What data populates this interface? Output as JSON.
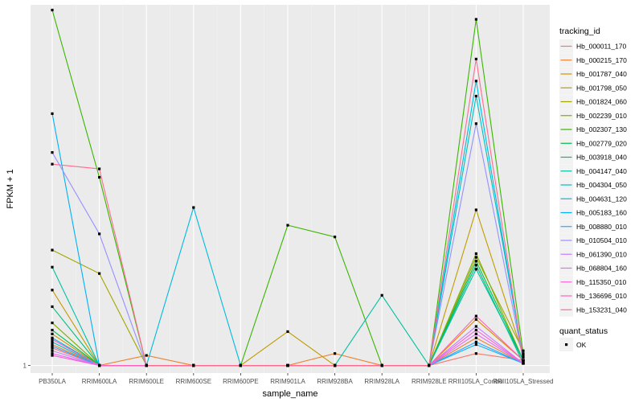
{
  "chart_data": {
    "type": "line",
    "xlabel": "sample_name",
    "ylabel": "FPKM + 1",
    "categories": [
      "PB350LA",
      "RRIM600LA",
      "RRIM600LE",
      "RRIM600SE",
      "RRIM600PE",
      "RRIM901LA",
      "RRIM928BA",
      "RRIM928LA",
      "RRIM928LE",
      "RRII105LA_Control",
      "RRII105LA_Stressed"
    ],
    "y_tick_labels": [
      "1"
    ],
    "ylim": [
      0.93,
      31
    ],
    "grid": true,
    "legend_position": "right",
    "legend_color_title": "tracking_id",
    "legend_shape_title": "quant_status",
    "legend_shape_label": "OK",
    "series": [
      {
        "name": "Hb_000011_170",
        "color": "#F8766D",
        "values": [
          1.18,
          1,
          1,
          1,
          1,
          1,
          1,
          1,
          1,
          1.12,
          1.05
        ]
      },
      {
        "name": "Hb_000215_170",
        "color": "#EA8331",
        "values": [
          1.22,
          1,
          1.1,
          1,
          1,
          1,
          1.12,
          1,
          1,
          1.3,
          1.02
        ]
      },
      {
        "name": "Hb_001787_040",
        "color": "#D89000",
        "values": [
          1.35,
          1,
          1,
          1,
          1,
          1,
          1,
          1,
          1,
          1.55,
          1.05
        ]
      },
      {
        "name": "Hb_001798_050",
        "color": "#C09B00",
        "values": [
          2.05,
          1,
          1,
          1,
          1,
          1.38,
          1,
          1,
          1,
          4.4,
          1.1
        ]
      },
      {
        "name": "Hb_001824_060",
        "color": "#A3A500",
        "values": [
          3.0,
          2.4,
          1,
          1,
          1,
          1,
          1,
          1,
          1,
          2.8,
          1.15
        ]
      },
      {
        "name": "Hb_002239_010",
        "color": "#7CAE00",
        "values": [
          1.5,
          1,
          1,
          1,
          1,
          1,
          1,
          1,
          1,
          2.9,
          1.05
        ]
      },
      {
        "name": "Hb_002307_130",
        "color": "#39B600",
        "values": [
          29.5,
          6.0,
          1,
          1,
          1,
          3.8,
          3.4,
          1,
          1,
          27.0,
          1.12
        ]
      },
      {
        "name": "Hb_002779_020",
        "color": "#00BB4E",
        "values": [
          1.4,
          1,
          1,
          1,
          1,
          1,
          1,
          1,
          1,
          2.7,
          1.05
        ]
      },
      {
        "name": "Hb_003918_040",
        "color": "#00BF7D",
        "values": [
          1.75,
          1,
          1,
          1,
          1,
          1,
          1,
          1,
          1,
          2.6,
          1.02
        ]
      },
      {
        "name": "Hb_004147_040",
        "color": "#00C1A3",
        "values": [
          2.55,
          1,
          1,
          1,
          1,
          1,
          1,
          1.95,
          1,
          2.5,
          1.05
        ]
      },
      {
        "name": "Hb_004304_050",
        "color": "#00BFC4",
        "values": [
          1.25,
          1,
          1,
          1,
          1,
          1,
          1,
          1,
          1,
          13.0,
          1.08
        ]
      },
      {
        "name": "Hb_004631_120",
        "color": "#00BAE0",
        "values": [
          1.3,
          1,
          1,
          4.5,
          1,
          1,
          1,
          1,
          1,
          15.0,
          1.05
        ]
      },
      {
        "name": "Hb_005183_160",
        "color": "#00B0F6",
        "values": [
          11.0,
          1,
          1,
          1,
          1,
          1,
          1,
          1,
          1,
          1.22,
          1.02
        ]
      },
      {
        "name": "Hb_008880_010",
        "color": "#35A2FF",
        "values": [
          1.2,
          1,
          1,
          1,
          1,
          1,
          1,
          1,
          1,
          1.25,
          1.02
        ]
      },
      {
        "name": "Hb_010504_010",
        "color": "#9590FF",
        "values": [
          7.6,
          3.5,
          1,
          1,
          1,
          1,
          1,
          1,
          1,
          10.0,
          1.05
        ]
      },
      {
        "name": "Hb_061390_010",
        "color": "#C77CFF",
        "values": [
          1.15,
          1,
          1,
          1,
          1,
          1,
          1,
          1,
          1,
          1.45,
          1.02
        ]
      },
      {
        "name": "Hb_068804_160",
        "color": "#E76BF3",
        "values": [
          1.12,
          1,
          1,
          1,
          1,
          1,
          1,
          1,
          1,
          1.35,
          1.02
        ]
      },
      {
        "name": "Hb_115350_010",
        "color": "#FA62DB",
        "values": [
          1.1,
          1,
          1,
          1,
          1,
          1,
          1,
          1,
          1,
          1.4,
          1.02
        ]
      },
      {
        "name": "Hb_136696_010",
        "color": "#FF62BC",
        "values": [
          1.28,
          1,
          1,
          1,
          1,
          1,
          1,
          1,
          1,
          1.6,
          1.05
        ]
      },
      {
        "name": "Hb_153231_040",
        "color": "#FF6C91",
        "values": [
          6.8,
          6.5,
          1,
          1,
          1,
          1,
          1,
          1,
          1,
          18.5,
          1.05
        ]
      }
    ]
  }
}
